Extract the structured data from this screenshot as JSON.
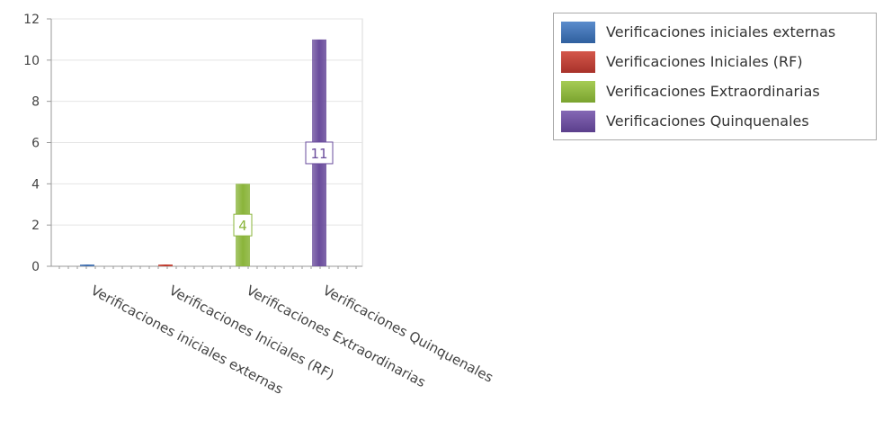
{
  "chart_data": {
    "type": "bar",
    "categories": [
      "Verificaciones iniciales externas",
      "Verificaciones Iniciales (RF)",
      "Verificaciones Extraordinarias",
      "Verificaciones Quinquenales"
    ],
    "values": [
      0,
      0,
      4,
      11
    ],
    "data_labels": [
      "",
      "",
      "4",
      "11"
    ],
    "ylim": [
      0,
      12
    ],
    "yticks": [
      0,
      2,
      4,
      6,
      8,
      10,
      12
    ],
    "grid": true,
    "legend_position": "top-right",
    "series": [
      {
        "name": "Verificaciones iniciales externas",
        "color": "#3f6fb0"
      },
      {
        "name": "Verificaciones Iniciales (RF)",
        "color": "#c0392b"
      },
      {
        "name": "Verificaciones Extraordinarias",
        "color": "#8ab43a"
      },
      {
        "name": "Verificaciones Quinquenales",
        "color": "#6a4c9c"
      }
    ]
  }
}
